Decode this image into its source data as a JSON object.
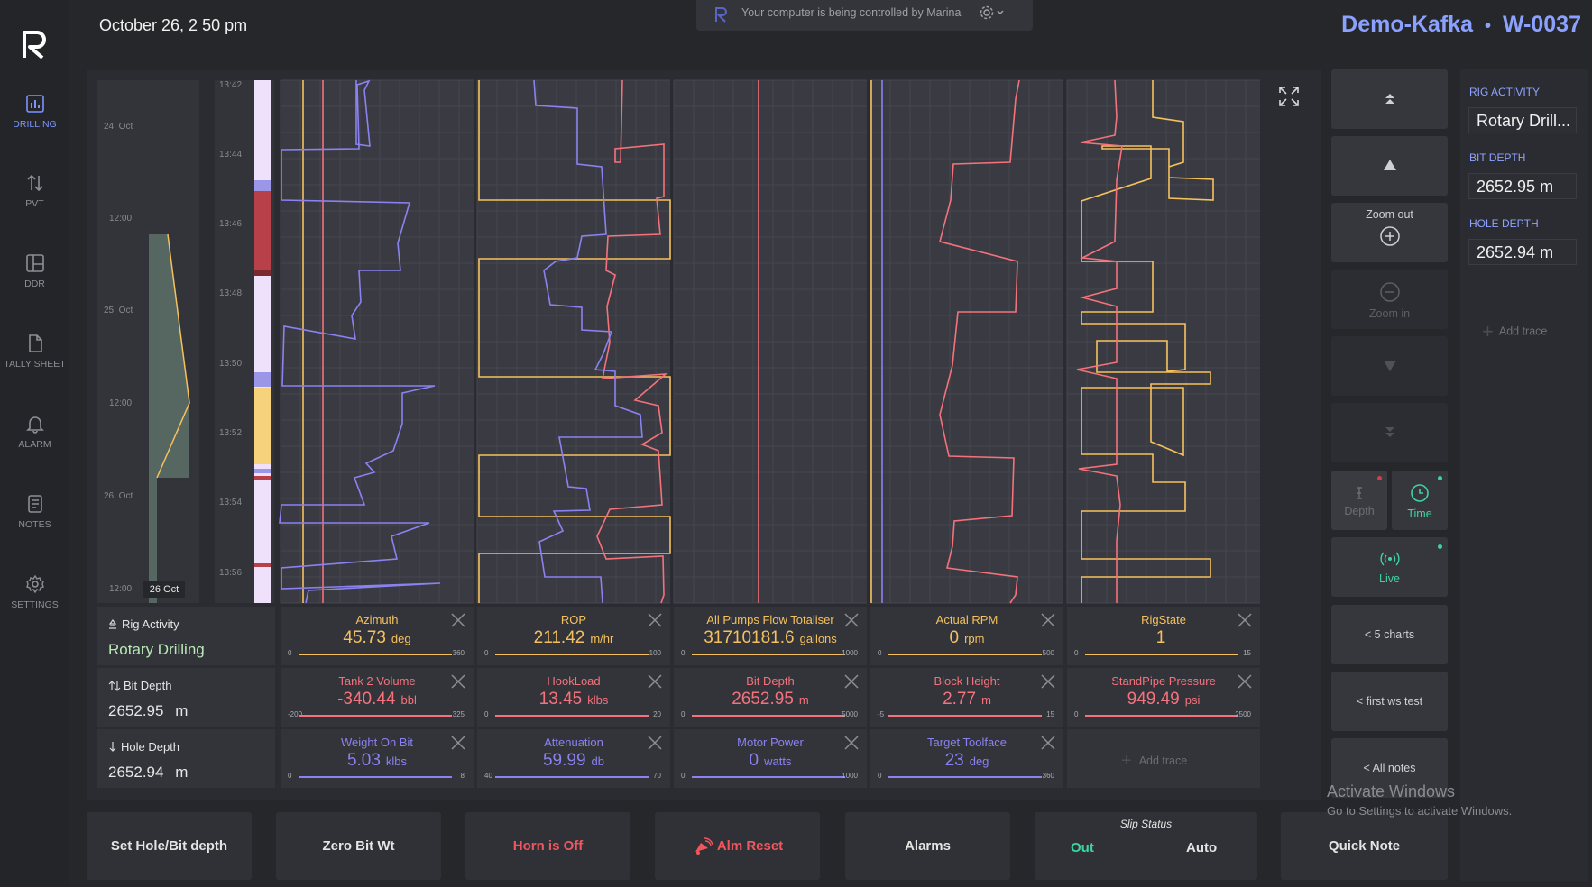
{
  "header": {
    "datetime": "October 26, 2 50 pm",
    "control_banner": "Your computer is being controlled by Marina",
    "well_name": "Demo-Kafka",
    "separator": "•",
    "well_id": "W-0037"
  },
  "sidebar": {
    "logo_letter": "R",
    "items": [
      {
        "label": "DRILLING",
        "icon": "bar-chart-icon",
        "active": true
      },
      {
        "label": "PVT",
        "icon": "arrows-updown-icon",
        "active": false
      },
      {
        "label": "DDR",
        "icon": "panels-icon",
        "active": false
      },
      {
        "label": "TALLY SHEET",
        "icon": "document-icon",
        "active": false
      },
      {
        "label": "ALARM",
        "icon": "bell-icon",
        "active": false
      },
      {
        "label": "NOTES",
        "icon": "notes-icon",
        "active": false
      },
      {
        "label": "SETTINGS",
        "icon": "gear-icon",
        "active": false
      }
    ]
  },
  "overview": {
    "day_labels": [
      "24. Oct",
      "12:00",
      "25. Oct",
      "12:00",
      "26. Oct",
      "12:00"
    ],
    "current_day": "26 Oct"
  },
  "time_axis": [
    "13:42",
    "13:44",
    "13:46",
    "13:48",
    "13:50",
    "13:52",
    "13:54",
    "13:56"
  ],
  "activity_panel": {
    "rig_activity_label": "Rig Activity",
    "rig_activity_value": "Rotary Drilling",
    "bit_depth_label": "Bit Depth",
    "bit_depth_value": "2652.95",
    "bit_depth_unit": "m",
    "hole_depth_label": "Hole Depth",
    "hole_depth_value": "2652.94",
    "hole_depth_unit": "m"
  },
  "traces": [
    [
      {
        "title": "Azimuth",
        "value": "45.73",
        "unit": "deg",
        "min": "0",
        "max": "360",
        "color": "#f6c15d"
      },
      {
        "title": "Tank 2 Volume",
        "value": "-340.44",
        "unit": "bbl",
        "min": "-200",
        "max": "325",
        "color": "#f4727c"
      },
      {
        "title": "Weight On Bit",
        "value": "5.03",
        "unit": "klbs",
        "min": "0",
        "max": "8",
        "color": "#8a82f0"
      }
    ],
    [
      {
        "title": "ROP",
        "value": "211.42",
        "unit": "m/hr",
        "min": "0",
        "max": "100",
        "color": "#f6c15d"
      },
      {
        "title": "HookLoad",
        "value": "13.45",
        "unit": "klbs",
        "min": "0",
        "max": "20",
        "color": "#f4727c"
      },
      {
        "title": "Attenuation",
        "value": "59.99",
        "unit": "db",
        "min": "40",
        "max": "70",
        "color": "#8a82f0"
      }
    ],
    [
      {
        "title": "All Pumps Flow Totaliser",
        "value": "31710181.6",
        "unit": "gallons",
        "min": "0",
        "max": "1000",
        "color": "#f6c15d"
      },
      {
        "title": "Bit Depth",
        "value": "2652.95",
        "unit": "m",
        "min": "0",
        "max": "5000",
        "color": "#f4727c"
      },
      {
        "title": "Motor Power",
        "value": "0",
        "unit": "watts",
        "min": "0",
        "max": "1000",
        "color": "#8a82f0"
      }
    ],
    [
      {
        "title": "Actual RPM",
        "value": "0",
        "unit": "rpm",
        "min": "0",
        "max": "500",
        "color": "#f6c15d"
      },
      {
        "title": "Block Height",
        "value": "2.77",
        "unit": "m",
        "min": "-5",
        "max": "15",
        "color": "#f4727c"
      },
      {
        "title": "Target Toolface",
        "value": "23",
        "unit": "deg",
        "min": "0",
        "max": "360",
        "color": "#8a82f0"
      }
    ],
    [
      {
        "title": "RigState",
        "value": "1",
        "unit": "",
        "min": "0",
        "max": "15",
        "color": "#f6c15d"
      },
      {
        "title": "StandPipe Pressure",
        "value": "949.49",
        "unit": "psi",
        "min": "0",
        "max": "2500",
        "color": "#f4727c"
      },
      {
        "title": "Add trace",
        "value": "",
        "unit": "",
        "min": "",
        "max": "",
        "color": "#6b6d74"
      }
    ]
  ],
  "right_panel": {
    "zoom_out_label": "Zoom out",
    "zoom_in_label": "Zoom in",
    "depth_label": "Depth",
    "time_label": "Time",
    "live_label": "Live",
    "charts_link": "< 5 charts",
    "ws_link": "< first ws test",
    "notes_link": "< All notes",
    "rig_activity_label": "RIG ACTIVITY",
    "rig_activity_value": "Rotary Drill...",
    "bit_depth_label": "BIT DEPTH",
    "bit_depth_value": "2652.95 m",
    "hole_depth_label": "HOLE DEPTH",
    "hole_depth_value": "2652.94 m",
    "add_trace_label": "Add trace"
  },
  "bottom_bar": {
    "set_depth": "Set Hole/Bit depth",
    "zero_bit": "Zero Bit Wt",
    "horn": "Horn is Off",
    "alm_reset": "Alm Reset",
    "alarms": "Alarms",
    "slip_status_label": "Slip Status",
    "slip_out": "Out",
    "slip_auto": "Auto",
    "quick_note": "Quick Note"
  },
  "watermark": {
    "title": "Activate Windows",
    "subtitle": "Go to Settings to activate Windows."
  },
  "colors": {
    "yellow": "#f6c15d",
    "pink": "#f4727c",
    "purple": "#8a82f0",
    "accent": "#8ba1ff",
    "green": "#3fd3a1"
  }
}
